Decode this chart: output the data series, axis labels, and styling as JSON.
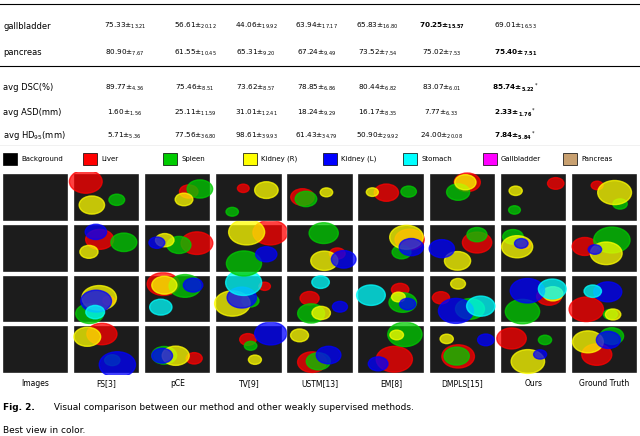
{
  "table_rows": [
    {
      "label": "gallbladder",
      "values": [
        {
          "main": "75.33",
          "sub": "13.21",
          "bold": false
        },
        {
          "main": "56.61",
          "sub": "20.12",
          "bold": false
        },
        {
          "main": "44.06",
          "sub": "19.92",
          "bold": false
        },
        {
          "main": "63.94",
          "sub": "17.17",
          "bold": false
        },
        {
          "main": "65.83",
          "sub": "16.80",
          "bold": false
        },
        {
          "main": "70.25",
          "sub": "15.57",
          "bold": true
        },
        {
          "main": "69.01",
          "sub": "16.53",
          "bold": false
        }
      ]
    },
    {
      "label": "pancreas",
      "values": [
        {
          "main": "80.90",
          "sub": "7.67",
          "bold": false
        },
        {
          "main": "61.55",
          "sub": "10.45",
          "bold": false
        },
        {
          "main": "65.31",
          "sub": "9.20",
          "bold": false
        },
        {
          "main": "67.24",
          "sub": "9.49",
          "bold": false
        },
        {
          "main": "73.52",
          "sub": "7.54",
          "bold": false
        },
        {
          "main": "75.02",
          "sub": "7.53",
          "bold": false
        },
        {
          "main": "75.40",
          "sub": "7.51",
          "bold": true
        }
      ]
    }
  ],
  "avg_rows": [
    {
      "label": "avg DSC(%)",
      "values": [
        {
          "main": "89.77",
          "sub": "4.36",
          "bold": false
        },
        {
          "main": "75.46",
          "sub": "8.51",
          "bold": false
        },
        {
          "main": "73.62",
          "sub": "8.57",
          "bold": false
        },
        {
          "main": "78.85",
          "sub": "6.86",
          "bold": false
        },
        {
          "main": "80.44",
          "sub": "6.82",
          "bold": false
        },
        {
          "main": "83.07",
          "sub": "6.01",
          "bold": false
        },
        {
          "main": "85.74",
          "sub": "5.22",
          "bold": true,
          "star": true
        }
      ]
    },
    {
      "label": "avg ASD(mm)",
      "values": [
        {
          "main": "1.60",
          "sub": "1.56",
          "bold": false
        },
        {
          "main": "25.11",
          "sub": "11.59",
          "bold": false
        },
        {
          "main": "31.01",
          "sub": "12.41",
          "bold": false
        },
        {
          "main": "18.24",
          "sub": "9.29",
          "bold": false
        },
        {
          "main": "16.17",
          "sub": "8.35",
          "bold": false
        },
        {
          "main": "7.77",
          "sub": "6.33",
          "bold": false
        },
        {
          "main": "2.33",
          "sub": "1.76",
          "bold": true,
          "star": true
        }
      ]
    },
    {
      "label": "avg HD$_{95}$(mm)",
      "values": [
        {
          "main": "5.71",
          "sub": "5.36",
          "bold": false
        },
        {
          "main": "77.56",
          "sub": "36.80",
          "bold": false
        },
        {
          "main": "98.61",
          "sub": "39.93",
          "bold": false
        },
        {
          "main": "61.43",
          "sub": "34.79",
          "bold": false
        },
        {
          "main": "50.90",
          "sub": "29.92",
          "bold": false
        },
        {
          "main": "24.00",
          "sub": "20.08",
          "bold": false
        },
        {
          "main": "7.84",
          "sub": "5.84",
          "bold": true,
          "star": true
        }
      ]
    }
  ],
  "legend_items": [
    {
      "label": "Background",
      "color": "#000000"
    },
    {
      "label": "Liver",
      "color": "#FF0000"
    },
    {
      "label": "Spleen",
      "color": "#00CC00"
    },
    {
      "label": "Kidney (R)",
      "color": "#FFFF00"
    },
    {
      "label": "Kidney (L)",
      "color": "#0000FF"
    },
    {
      "label": "Stomach",
      "color": "#00FFFF"
    },
    {
      "label": "Gallbladder",
      "color": "#FF00FF"
    },
    {
      "label": "Pancreas",
      "color": "#C8A070"
    }
  ],
  "col_labels": [
    "Images",
    "FS[3]",
    "pCE",
    "TV[9]",
    "USTM[13]",
    "EM[8]",
    "DMPLS[15]",
    "Ours",
    "Ground Truth"
  ],
  "caption_bold": "Fig. 2.",
  "caption_rest": " Visual comparison between our method and other weakly supervised methods.",
  "caption_line2": "Best view in color.",
  "bg_color": "#FFFFFF"
}
